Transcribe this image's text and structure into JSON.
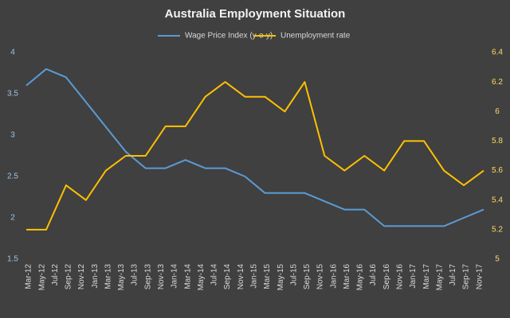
{
  "chart_data": {
    "type": "line",
    "title": "Australia Employment Situation",
    "categories": [
      "Mar-12",
      null,
      "May-12",
      null,
      "Jul-12",
      null,
      "Sep-12",
      null,
      "Nov-12",
      null,
      "Jan-13",
      null,
      "Mar-13",
      null,
      "May-13",
      null,
      "Jul-13",
      null,
      "Sep-13",
      null,
      "Nov-13",
      null,
      "Jan-14",
      null,
      "Mar-14",
      null,
      "May-14",
      null,
      "Jul-14",
      null,
      "Sep-14",
      null,
      "Nov-14",
      null,
      "Jan-15",
      null,
      "Mar-15",
      null,
      "May-15",
      null,
      "Jul-15",
      null,
      "Sep-15",
      null,
      "Nov-15",
      null,
      "Jan-16",
      null,
      "Mar-16",
      null,
      "May-16",
      null,
      "Jul-16",
      null,
      "Sep-16",
      null,
      "Nov-16",
      null,
      "Jan-17",
      null,
      "Mar-17",
      null,
      "May-17",
      null,
      "Jul-17",
      null,
      "Sep-17",
      null,
      "Nov-17",
      null
    ],
    "connect_gaps": true,
    "series": [
      {
        "name": "Wage Price Index (y-o-y)",
        "color": "#5b9bd5",
        "axis": "y",
        "values": [
          3.6,
          null,
          null,
          3.8,
          null,
          null,
          3.7,
          null,
          null,
          3.4,
          null,
          null,
          3.1,
          null,
          null,
          2.8,
          null,
          null,
          2.6,
          null,
          null,
          2.6,
          null,
          null,
          2.7,
          null,
          null,
          2.6,
          null,
          null,
          2.6,
          null,
          null,
          2.5,
          null,
          null,
          2.3,
          null,
          null,
          2.3,
          null,
          null,
          2.3,
          null,
          null,
          2.2,
          null,
          null,
          2.1,
          null,
          null,
          2.1,
          null,
          null,
          1.9,
          null,
          null,
          1.9,
          null,
          null,
          1.9,
          null,
          null,
          1.9,
          null,
          null,
          2.0,
          null,
          null,
          2.1
        ]
      },
      {
        "name": "Unemployment rate",
        "color": "#ffc000",
        "axis": "y2",
        "values": [
          5.2,
          null,
          null,
          5.2,
          null,
          null,
          5.5,
          null,
          null,
          5.4,
          null,
          null,
          5.6,
          null,
          null,
          5.7,
          null,
          null,
          5.7,
          null,
          null,
          5.9,
          null,
          null,
          5.9,
          null,
          null,
          6.1,
          null,
          null,
          6.2,
          null,
          null,
          6.1,
          null,
          null,
          6.1,
          null,
          null,
          6.0,
          null,
          null,
          6.2,
          null,
          null,
          5.7,
          null,
          null,
          5.6,
          null,
          null,
          5.7,
          null,
          null,
          5.6,
          null,
          null,
          5.8,
          null,
          null,
          5.8,
          null,
          null,
          5.6,
          null,
          null,
          5.5,
          null,
          null,
          5.6
        ]
      }
    ],
    "ylim": [
      1.5,
      4
    ],
    "yticks": [
      1.5,
      2,
      2.5,
      3,
      3.5,
      4
    ],
    "y2lim": [
      5,
      6.4
    ],
    "y2ticks": [
      5,
      5.2,
      5.4,
      5.6,
      5.8,
      6,
      6.2,
      6.4
    ],
    "ytick_color": "#9dc3e6",
    "y2tick_color": "#ffd966",
    "grid": false,
    "legend": "top"
  }
}
